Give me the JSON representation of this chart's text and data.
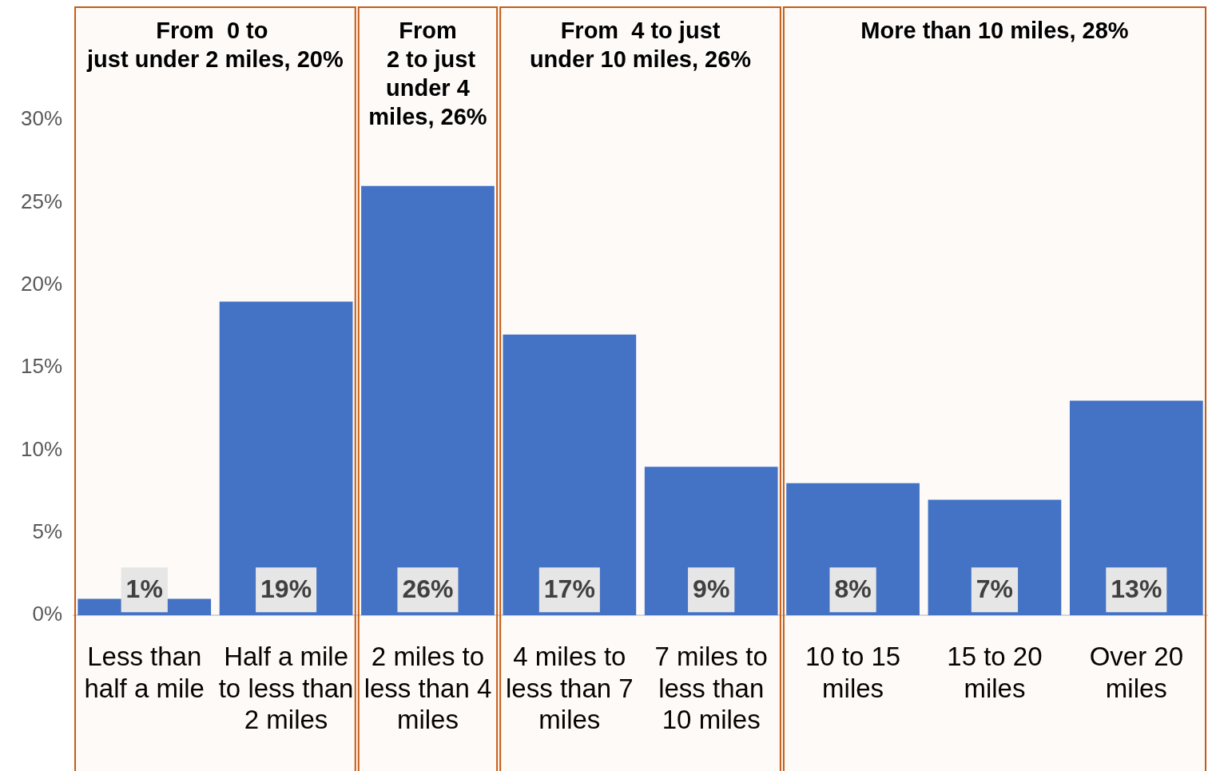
{
  "chart_data": {
    "type": "bar",
    "categories": [
      "Less than half a mile",
      "Half a mile to less than 2 miles",
      "2 miles to less than 4 miles",
      "4 miles to less than 7 miles",
      "7 miles to less than 10 miles",
      "10 to 15 miles",
      "15 to 20 miles",
      "Over 20 miles"
    ],
    "values": [
      1,
      19,
      26,
      17,
      9,
      8,
      7,
      13
    ],
    "value_labels": [
      "1%",
      "19%",
      "26%",
      "17%",
      "9%",
      "8%",
      "7%",
      "13%"
    ],
    "color": "#4472c4",
    "ylim": [
      0,
      30
    ],
    "yticks": [
      {
        "value": 0,
        "label": "0%"
      },
      {
        "value": 5,
        "label": "5%"
      },
      {
        "value": 10,
        "label": "10%"
      },
      {
        "value": 15,
        "label": "15%"
      },
      {
        "value": 20,
        "label": "20%"
      },
      {
        "value": 25,
        "label": "25%"
      },
      {
        "value": 30,
        "label": "30%"
      }
    ],
    "grid": false,
    "legend": false,
    "bands": [
      {
        "axis": "x",
        "from": "Less than half a mile",
        "to": "Half a mile to less than 2 miles",
        "label": "From  0 to  just under 2 miles, 20%",
        "color": "#c55a11"
      },
      {
        "axis": "x",
        "from": "2 miles to less than 4 miles",
        "to": "2 miles to less than 4 miles",
        "label": "From  2 to just under 4 miles, 26%",
        "color": "#c55a11"
      },
      {
        "axis": "x",
        "from": "4 miles to less than 7 miles",
        "to": "7 miles to less than 10 miles",
        "label": "From  4 to just under 10 miles, 26%",
        "color": "#c55a11"
      },
      {
        "axis": "x",
        "from": "10 to 15 miles",
        "to": "Over 20 miles",
        "label": "More than 10 miles, 28%",
        "color": "#c55a11"
      }
    ]
  }
}
